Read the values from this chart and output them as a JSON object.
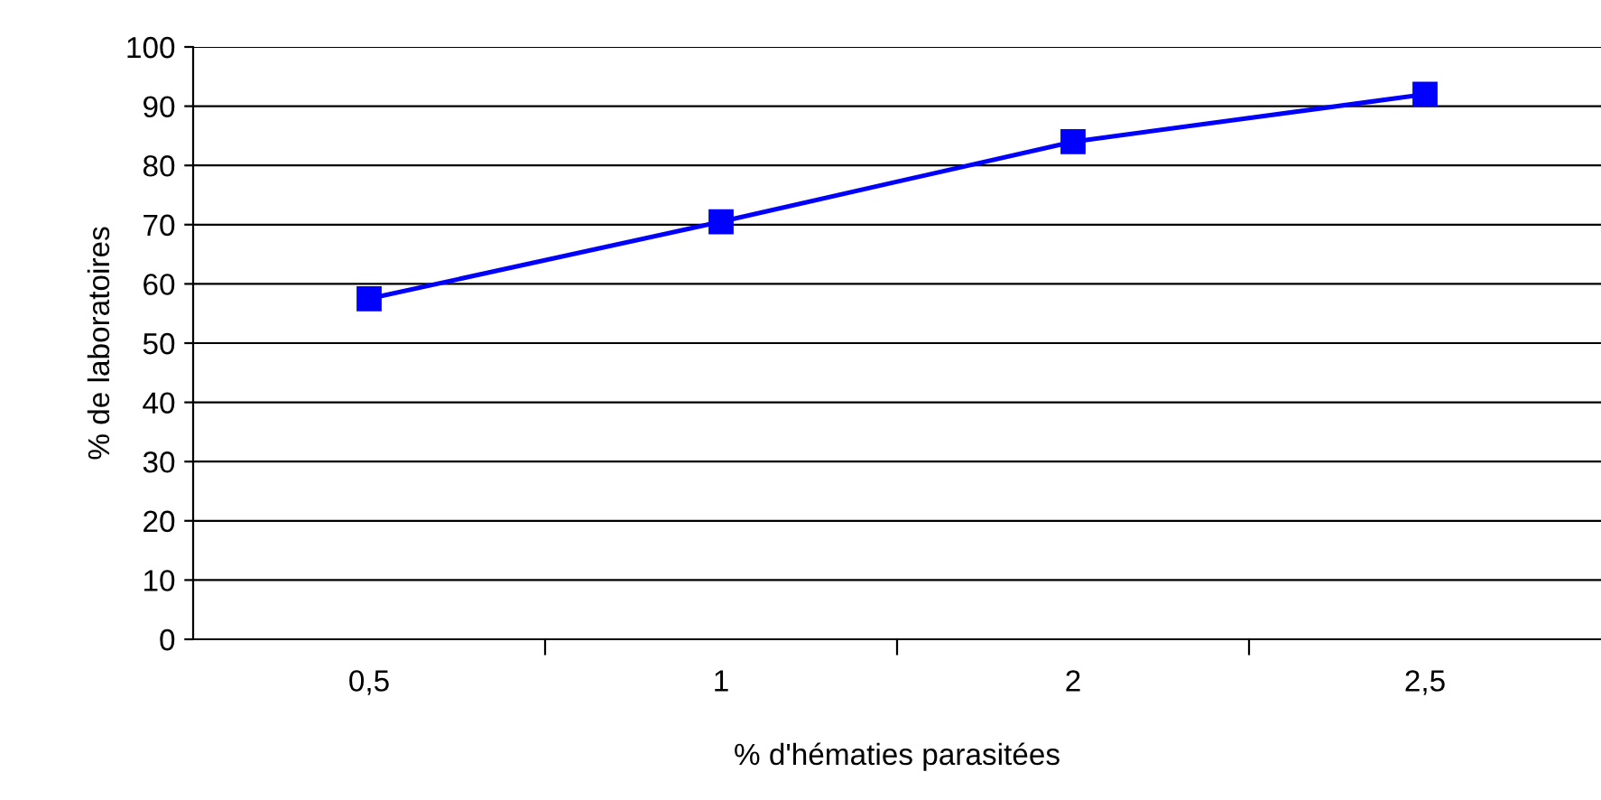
{
  "chart_data": {
    "type": "line",
    "xlabel": "% d'hématies parasitées",
    "ylabel": "% de laboratoires",
    "categories": [
      "0,5",
      "1",
      "2",
      "2,5"
    ],
    "series": [
      {
        "color": "#0000ff",
        "values": [
          57.5,
          70.5,
          84,
          92
        ]
      }
    ],
    "ylim": [
      0,
      100
    ],
    "yticks": [
      0,
      10,
      20,
      30,
      40,
      50,
      60,
      70,
      80,
      90,
      100
    ],
    "grid": "y",
    "marker": "square",
    "line_style": "solid",
    "legend": false
  }
}
